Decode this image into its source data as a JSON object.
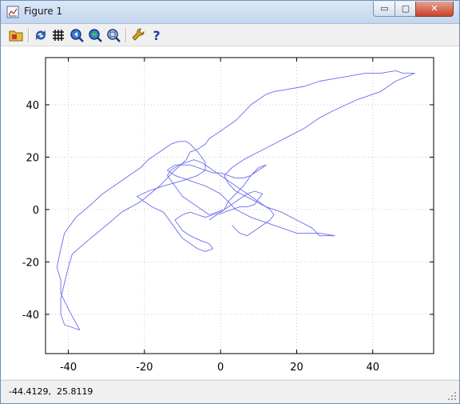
{
  "window": {
    "title": "Figure 1",
    "controls": {
      "minimize": "▭",
      "maximize": "▢",
      "close": "✕"
    }
  },
  "toolbar": {
    "items": [
      {
        "name": "open-folder-icon"
      },
      {
        "name": "refresh-icon"
      },
      {
        "name": "grid-icon"
      },
      {
        "name": "zoom-in-icon"
      },
      {
        "name": "zoom-out-icon"
      },
      {
        "name": "zoom-fit-icon"
      },
      {
        "name": "settings-wrench-icon"
      },
      {
        "name": "help-icon"
      }
    ]
  },
  "status": {
    "coords": "-44.4129,  25.8119"
  },
  "colors": {
    "line": "#6b6bef",
    "grid": "#c8c8c8",
    "axis": "#000000"
  },
  "chart_data": {
    "type": "line",
    "xlim": [
      -46,
      56
    ],
    "ylim": [
      -55,
      58
    ],
    "xticks": [
      -40,
      -20,
      0,
      20,
      40
    ],
    "yticks": [
      -40,
      -20,
      0,
      20,
      40
    ],
    "grid": true,
    "series": [
      {
        "x": [
          -37,
          -41,
          -42,
          -42,
          -41,
          -40,
          -39,
          -35,
          -30,
          -26,
          -21,
          -16,
          -12,
          -9,
          -8,
          -6,
          -4,
          -3,
          -2,
          0,
          2,
          4,
          6,
          8,
          10,
          12,
          14,
          18,
          22,
          26,
          30,
          34,
          38,
          42,
          46,
          48,
          51,
          46,
          42,
          36,
          30,
          26,
          22,
          18,
          14,
          10,
          6,
          3,
          1,
          2,
          4,
          8,
          12,
          16,
          20,
          24,
          26,
          30,
          26,
          20,
          14,
          8,
          4,
          2,
          0,
          -4,
          -8,
          -12,
          -14,
          -12,
          -8,
          -4,
          -2,
          0,
          2,
          4,
          6,
          8,
          10,
          12,
          10,
          8,
          6,
          4,
          2,
          1,
          0,
          -2,
          -4,
          -6,
          -8,
          -10,
          -12,
          -11,
          -10,
          -8,
          -5,
          -3,
          -2,
          -4,
          -6,
          -8,
          -10,
          -11,
          -12,
          -13,
          -14,
          -15,
          -18,
          -20,
          -22,
          -19,
          -15,
          -10,
          -6,
          -4,
          -4,
          -5,
          -6,
          -8,
          -9,
          -11,
          -13,
          -16,
          -19,
          -21,
          -24,
          -27,
          -31,
          -34,
          -38,
          -41,
          -42,
          -43,
          -42,
          -42,
          -40,
          -37
        ],
        "y": [
          -46,
          -44,
          -40,
          -34,
          -28,
          -22,
          -17,
          -12,
          -6,
          -1,
          3,
          9,
          15,
          19,
          22,
          23,
          25,
          27,
          28,
          30,
          32,
          34,
          37,
          40,
          42,
          44,
          45,
          46,
          47,
          49,
          50,
          51,
          52,
          52,
          53,
          52,
          52,
          49,
          45,
          42,
          38,
          35,
          31,
          28,
          25,
          22,
          19,
          16,
          13,
          10,
          7,
          4,
          1,
          -1,
          -4,
          -7,
          -10,
          -10,
          -9,
          -9,
          -6,
          -3,
          0,
          3,
          6,
          9,
          11,
          13,
          15,
          17,
          17,
          15,
          14,
          14,
          13,
          12,
          12,
          13,
          15,
          17,
          16,
          13,
          9,
          6,
          3,
          0,
          -1,
          -2,
          -3,
          -2,
          -1,
          -2,
          -4,
          -6,
          -8,
          -10,
          -12,
          -13,
          -15,
          -16,
          -15,
          -13,
          -11,
          -9,
          -7,
          -5,
          -3,
          -1,
          1,
          3,
          5,
          7,
          9,
          11,
          13,
          15,
          18,
          20,
          22,
          25,
          26,
          26,
          25,
          22,
          19,
          16,
          13,
          10,
          6,
          2,
          -3,
          -9,
          -15,
          -22,
          -27,
          -32,
          -38,
          -46
        ]
      },
      {
        "x": [
          -3,
          -1,
          1,
          3,
          5,
          7,
          9,
          10,
          11,
          9,
          7,
          5,
          3,
          1,
          -1,
          -3,
          -4,
          -5,
          -6,
          -8,
          -10,
          -11,
          -12,
          -13,
          -14,
          -13,
          -11,
          -9,
          -7,
          -5,
          -3,
          -1,
          1,
          3,
          5,
          7,
          9,
          11,
          13,
          14,
          13,
          11,
          9,
          7,
          5,
          3
        ],
        "y": [
          -4,
          -2,
          -1,
          0,
          1,
          1,
          2,
          4,
          6,
          7,
          6,
          4,
          2,
          0,
          -1,
          -2,
          -1,
          0,
          1,
          3,
          5,
          7,
          9,
          11,
          13,
          15,
          17,
          18,
          19,
          18,
          16,
          14,
          12,
          10,
          8,
          6,
          4,
          2,
          0,
          -2,
          -4,
          -6,
          -8,
          -10,
          -9,
          -6
        ]
      }
    ]
  }
}
